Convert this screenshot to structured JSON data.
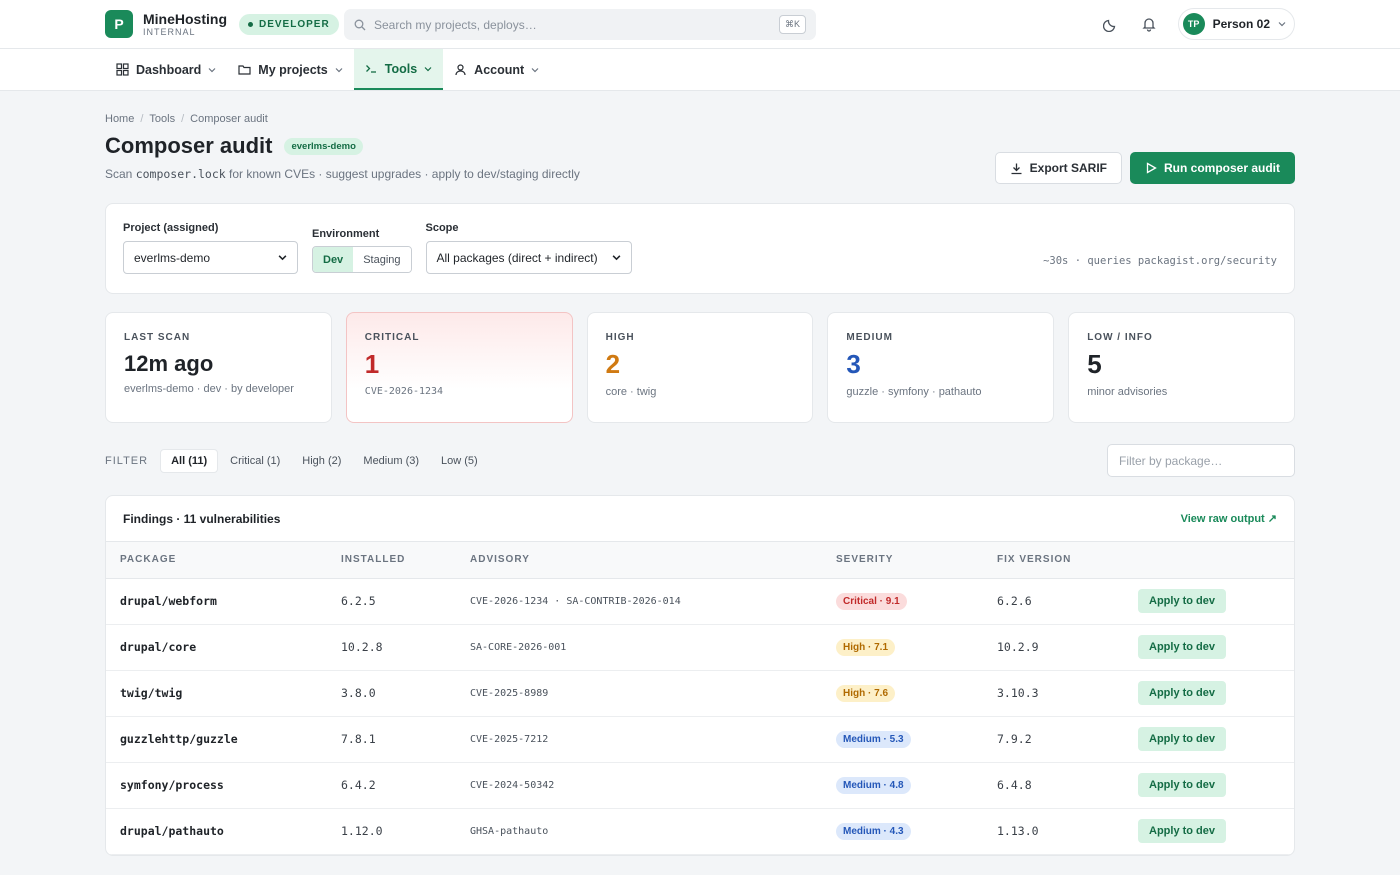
{
  "header": {
    "logo_letter": "P",
    "brand_name": "MineHosting",
    "brand_sub": "INTERNAL",
    "role_badge": "DEVELOPER",
    "search_placeholder": "Search my projects, deploys…",
    "search_shortcut": "⌘K",
    "user_initials": "TP",
    "user_name": "Person 02"
  },
  "nav": [
    {
      "label": "Dashboard",
      "icon": "grid-icon"
    },
    {
      "label": "My projects",
      "icon": "folder-icon"
    },
    {
      "label": "Tools",
      "icon": "terminal-icon",
      "active": true
    },
    {
      "label": "Account",
      "icon": "user-icon"
    }
  ],
  "breadcrumb": [
    "Home",
    "Tools",
    "Composer audit"
  ],
  "page": {
    "title": "Composer audit",
    "project_tag": "everlms-demo",
    "subtitle_pre": "Scan ",
    "subtitle_code": "composer.lock",
    "subtitle_post": " for known CVEs · suggest upgrades · apply to dev/staging directly",
    "export_label": "Export SARIF",
    "run_label": "Run composer audit"
  },
  "filters": {
    "project_label": "Project (assigned)",
    "project_value": "everlms-demo",
    "env_label": "Environment",
    "env_options": [
      "Dev",
      "Staging"
    ],
    "env_selected": "Dev",
    "scope_label": "Scope",
    "scope_value": "All packages (direct + indirect)",
    "hint": "~30s · queries packagist.org/security"
  },
  "stats": [
    {
      "label": "LAST SCAN",
      "value": "12m ago",
      "sub": "everlms-demo · dev · by developer",
      "color": "#1f2328"
    },
    {
      "label": "CRITICAL",
      "value": "1",
      "sub": "CVE-2026-1234",
      "color": "#c12a2a"
    },
    {
      "label": "HIGH",
      "value": "2",
      "sub": "core · twig",
      "color": "#d07a12"
    },
    {
      "label": "MEDIUM",
      "value": "3",
      "sub": "guzzle · symfony · pathauto",
      "color": "#2457b8"
    },
    {
      "label": "LOW / INFO",
      "value": "5",
      "sub": "minor advisories",
      "color": "#1f2328"
    }
  ],
  "severity_filter": {
    "label": "FILTER",
    "chips": [
      "All (11)",
      "Critical (1)",
      "High (2)",
      "Medium (3)",
      "Low (5)"
    ],
    "selected": "All (11)",
    "package_placeholder": "Filter by package…"
  },
  "findings": {
    "title": "Findings · 11 vulnerabilities",
    "raw_link": "View raw output ↗",
    "columns": [
      "PACKAGE",
      "INSTALLED",
      "ADVISORY",
      "SEVERITY",
      "FIX VERSION",
      ""
    ],
    "rows": [
      {
        "package": "drupal/webform",
        "installed": "6.2.5",
        "advisory": "CVE-2026-1234 · SA-CONTRIB-2026-014",
        "severity": "Critical · 9.1",
        "level": "critical",
        "fix": "6.2.6",
        "action": "Apply to dev"
      },
      {
        "package": "drupal/core",
        "installed": "10.2.8",
        "advisory": "SA-CORE-2026-001",
        "severity": "High · 7.1",
        "level": "high",
        "fix": "10.2.9",
        "action": "Apply to dev"
      },
      {
        "package": "twig/twig",
        "installed": "3.8.0",
        "advisory": "CVE-2025-8989",
        "severity": "High · 7.6",
        "level": "high",
        "fix": "3.10.3",
        "action": "Apply to dev"
      },
      {
        "package": "guzzlehttp/guzzle",
        "installed": "7.8.1",
        "advisory": "CVE-2025-7212",
        "severity": "Medium · 5.3",
        "level": "medium",
        "fix": "7.9.2",
        "action": "Apply to dev"
      },
      {
        "package": "symfony/process",
        "installed": "6.4.2",
        "advisory": "CVE-2024-50342",
        "severity": "Medium · 4.8",
        "level": "medium",
        "fix": "6.4.8",
        "action": "Apply to dev"
      },
      {
        "package": "drupal/pathauto",
        "installed": "1.12.0",
        "advisory": "GHSA-pathauto",
        "severity": "Medium · 4.3",
        "level": "medium",
        "fix": "1.13.0",
        "action": "Apply to dev"
      }
    ]
  }
}
